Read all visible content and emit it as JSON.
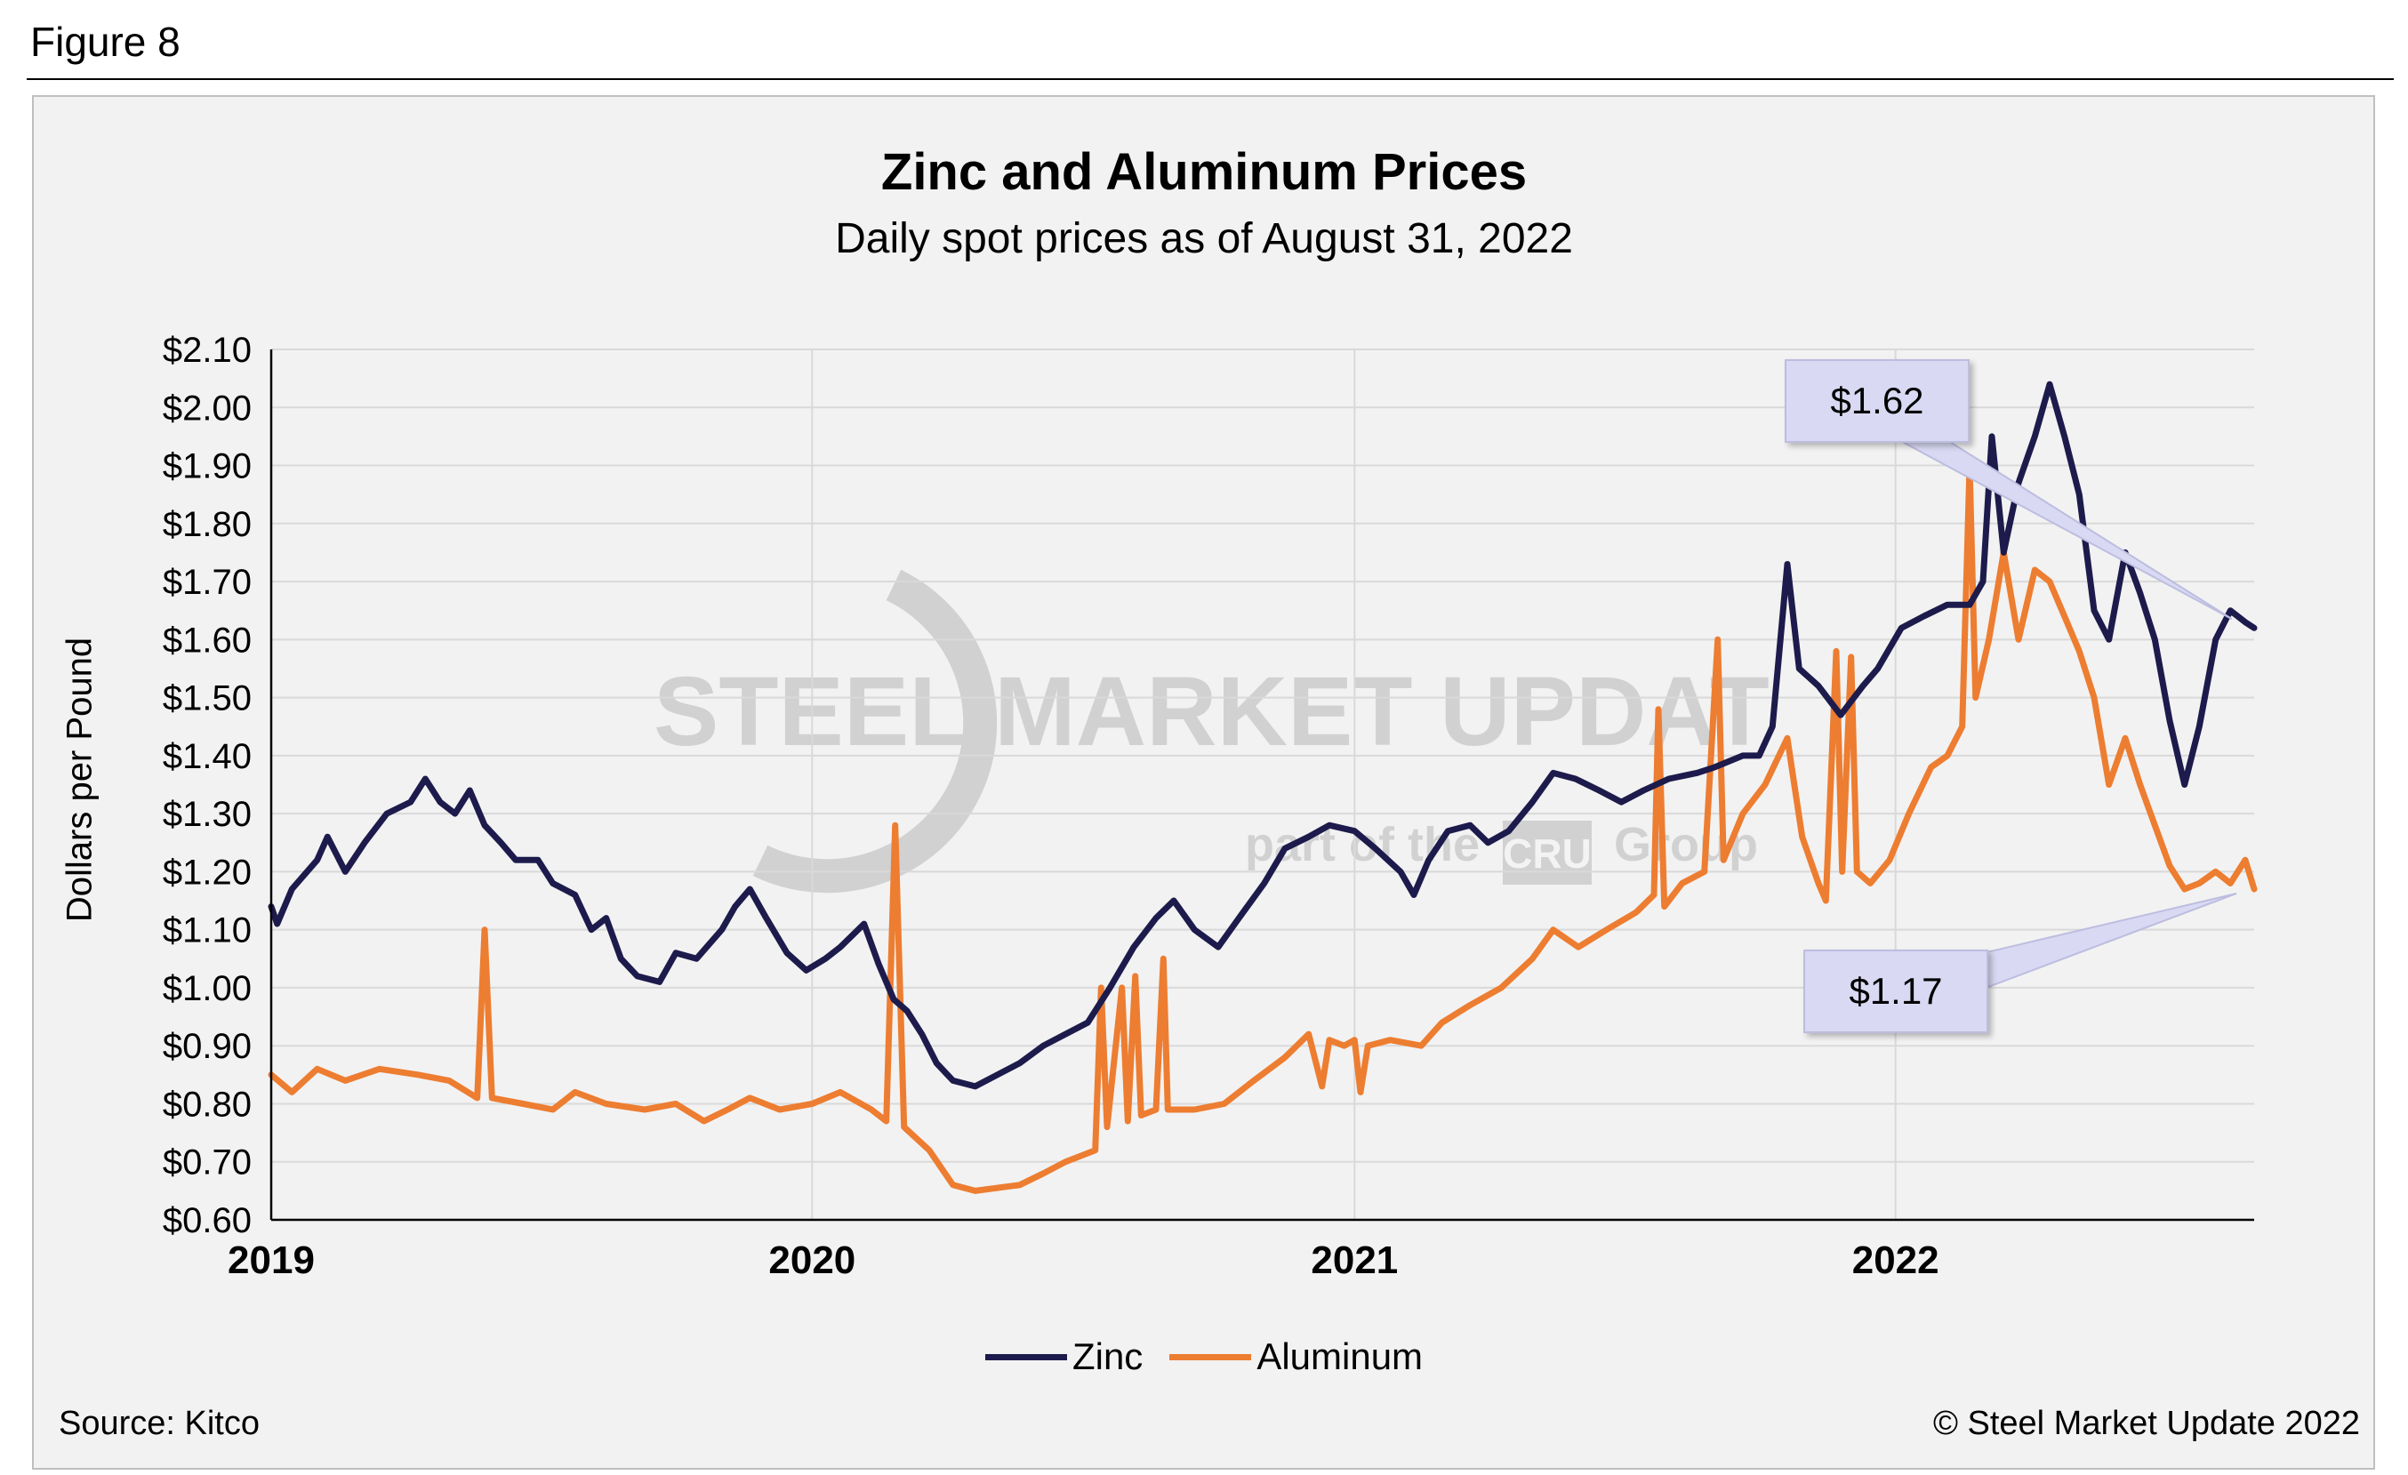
{
  "figure_label": "Figure 8",
  "source": "Source: Kitco",
  "copyright": "© Steel Market Update 2022",
  "colors": {
    "zinc": "#1d1b4c",
    "aluminum": "#ed7d31",
    "callout_fill": "#d9d9f3",
    "panel": "#f2f2f2"
  },
  "callouts": [
    {
      "label": "$1.62",
      "series": "Zinc"
    },
    {
      "label": "$1.17",
      "series": "Aluminum"
    }
  ],
  "watermark": {
    "line1": "STEEL MARKET UPDATE",
    "line2": "part of the",
    "brand": "CRU",
    "line3": "Group"
  },
  "chart_data": {
    "type": "line",
    "title": "Zinc and Aluminum Prices",
    "subtitle": "Daily spot prices as of August 31, 2022",
    "xlabel": "",
    "ylabel": "Dollars per Pound",
    "xlim": [
      "2019-01-01",
      "2022-08-31"
    ],
    "ylim": [
      0.6,
      2.1
    ],
    "x_ticks": [
      "2019",
      "2020",
      "2021",
      "2022"
    ],
    "y_ticks": [
      "$0.60",
      "$0.70",
      "$0.80",
      "$0.90",
      "$1.00",
      "$1.10",
      "$1.20",
      "$1.30",
      "$1.40",
      "$1.50",
      "$1.60",
      "$1.70",
      "$1.80",
      "$1.90",
      "$2.00",
      "$2.10"
    ],
    "y_tick_values": [
      0.6,
      0.7,
      0.8,
      0.9,
      1.0,
      1.1,
      1.2,
      1.3,
      1.4,
      1.5,
      1.6,
      1.7,
      1.8,
      1.9,
      2.0,
      2.1
    ],
    "grid": true,
    "legend": "bottom",
    "series": [
      {
        "name": "Zinc",
        "points": [
          [
            "2019-01-01",
            1.14
          ],
          [
            "2019-01-05",
            1.11
          ],
          [
            "2019-01-15",
            1.17
          ],
          [
            "2019-02-01",
            1.22
          ],
          [
            "2019-02-08",
            1.26
          ],
          [
            "2019-02-20",
            1.2
          ],
          [
            "2019-03-05",
            1.25
          ],
          [
            "2019-03-20",
            1.3
          ],
          [
            "2019-04-05",
            1.32
          ],
          [
            "2019-04-15",
            1.36
          ],
          [
            "2019-04-25",
            1.32
          ],
          [
            "2019-05-05",
            1.3
          ],
          [
            "2019-05-15",
            1.34
          ],
          [
            "2019-05-25",
            1.28
          ],
          [
            "2019-06-05",
            1.25
          ],
          [
            "2019-06-15",
            1.22
          ],
          [
            "2019-06-30",
            1.22
          ],
          [
            "2019-07-10",
            1.18
          ],
          [
            "2019-07-25",
            1.16
          ],
          [
            "2019-08-05",
            1.1
          ],
          [
            "2019-08-15",
            1.12
          ],
          [
            "2019-08-25",
            1.05
          ],
          [
            "2019-09-05",
            1.02
          ],
          [
            "2019-09-20",
            1.01
          ],
          [
            "2019-10-01",
            1.06
          ],
          [
            "2019-10-15",
            1.05
          ],
          [
            "2019-11-01",
            1.1
          ],
          [
            "2019-11-10",
            1.14
          ],
          [
            "2019-11-20",
            1.17
          ],
          [
            "2019-12-01",
            1.12
          ],
          [
            "2019-12-15",
            1.06
          ],
          [
            "2019-12-28",
            1.03
          ],
          [
            "2020-01-10",
            1.05
          ],
          [
            "2020-01-20",
            1.07
          ],
          [
            "2020-02-05",
            1.11
          ],
          [
            "2020-02-15",
            1.04
          ],
          [
            "2020-02-25",
            0.98
          ],
          [
            "2020-03-05",
            0.96
          ],
          [
            "2020-03-15",
            0.92
          ],
          [
            "2020-03-25",
            0.87
          ],
          [
            "2020-04-05",
            0.84
          ],
          [
            "2020-04-20",
            0.83
          ],
          [
            "2020-05-05",
            0.85
          ],
          [
            "2020-05-20",
            0.87
          ],
          [
            "2020-06-05",
            0.9
          ],
          [
            "2020-06-20",
            0.92
          ],
          [
            "2020-07-05",
            0.94
          ],
          [
            "2020-07-20",
            1.0
          ],
          [
            "2020-08-05",
            1.07
          ],
          [
            "2020-08-20",
            1.12
          ],
          [
            "2020-09-01",
            1.15
          ],
          [
            "2020-09-15",
            1.1
          ],
          [
            "2020-10-01",
            1.07
          ],
          [
            "2020-10-15",
            1.12
          ],
          [
            "2020-11-01",
            1.18
          ],
          [
            "2020-11-15",
            1.24
          ],
          [
            "2020-12-01",
            1.26
          ],
          [
            "2020-12-15",
            1.28
          ],
          [
            "2021-01-01",
            1.27
          ],
          [
            "2021-01-15",
            1.24
          ],
          [
            "2021-02-01",
            1.2
          ],
          [
            "2021-02-10",
            1.16
          ],
          [
            "2021-02-20",
            1.22
          ],
          [
            "2021-03-05",
            1.27
          ],
          [
            "2021-03-20",
            1.28
          ],
          [
            "2021-04-01",
            1.25
          ],
          [
            "2021-04-15",
            1.27
          ],
          [
            "2021-05-01",
            1.32
          ],
          [
            "2021-05-15",
            1.37
          ],
          [
            "2021-05-30",
            1.36
          ],
          [
            "2021-06-15",
            1.34
          ],
          [
            "2021-06-30",
            1.32
          ],
          [
            "2021-07-15",
            1.34
          ],
          [
            "2021-08-01",
            1.36
          ],
          [
            "2021-08-20",
            1.37
          ],
          [
            "2021-09-01",
            1.38
          ],
          [
            "2021-09-20",
            1.4
          ],
          [
            "2021-10-01",
            1.4
          ],
          [
            "2021-10-10",
            1.45
          ],
          [
            "2021-10-20",
            1.73
          ],
          [
            "2021-10-28",
            1.55
          ],
          [
            "2021-11-10",
            1.52
          ],
          [
            "2021-11-25",
            1.47
          ],
          [
            "2021-12-10",
            1.52
          ],
          [
            "2021-12-20",
            1.55
          ],
          [
            "2022-01-05",
            1.62
          ],
          [
            "2022-01-20",
            1.64
          ],
          [
            "2022-02-05",
            1.66
          ],
          [
            "2022-02-20",
            1.66
          ],
          [
            "2022-03-01",
            1.7
          ],
          [
            "2022-03-07",
            1.95
          ],
          [
            "2022-03-15",
            1.75
          ],
          [
            "2022-03-25",
            1.87
          ],
          [
            "2022-04-05",
            1.95
          ],
          [
            "2022-04-15",
            2.04
          ],
          [
            "2022-04-25",
            1.95
          ],
          [
            "2022-05-05",
            1.85
          ],
          [
            "2022-05-15",
            1.65
          ],
          [
            "2022-05-25",
            1.6
          ],
          [
            "2022-06-05",
            1.75
          ],
          [
            "2022-06-15",
            1.68
          ],
          [
            "2022-06-25",
            1.6
          ],
          [
            "2022-07-05",
            1.46
          ],
          [
            "2022-07-15",
            1.35
          ],
          [
            "2022-07-25",
            1.45
          ],
          [
            "2022-08-05",
            1.6
          ],
          [
            "2022-08-15",
            1.65
          ],
          [
            "2022-08-25",
            1.63
          ],
          [
            "2022-08-31",
            1.62
          ]
        ]
      },
      {
        "name": "Aluminum",
        "points": [
          [
            "2019-01-01",
            0.85
          ],
          [
            "2019-01-15",
            0.82
          ],
          [
            "2019-02-01",
            0.86
          ],
          [
            "2019-02-20",
            0.84
          ],
          [
            "2019-03-15",
            0.86
          ],
          [
            "2019-04-10",
            0.85
          ],
          [
            "2019-05-01",
            0.84
          ],
          [
            "2019-05-20",
            0.81
          ],
          [
            "2019-05-25",
            1.1
          ],
          [
            "2019-05-30",
            0.81
          ],
          [
            "2019-06-20",
            0.8
          ],
          [
            "2019-07-10",
            0.79
          ],
          [
            "2019-07-25",
            0.82
          ],
          [
            "2019-08-15",
            0.8
          ],
          [
            "2019-09-10",
            0.79
          ],
          [
            "2019-10-01",
            0.8
          ],
          [
            "2019-10-20",
            0.77
          ],
          [
            "2019-11-05",
            0.79
          ],
          [
            "2019-11-20",
            0.81
          ],
          [
            "2019-12-10",
            0.79
          ],
          [
            "2020-01-01",
            0.8
          ],
          [
            "2020-01-20",
            0.82
          ],
          [
            "2020-02-10",
            0.79
          ],
          [
            "2020-02-20",
            0.77
          ],
          [
            "2020-02-26",
            1.28
          ],
          [
            "2020-03-03",
            0.76
          ],
          [
            "2020-03-20",
            0.72
          ],
          [
            "2020-04-05",
            0.66
          ],
          [
            "2020-04-20",
            0.65
          ],
          [
            "2020-05-20",
            0.66
          ],
          [
            "2020-06-05",
            0.68
          ],
          [
            "2020-06-20",
            0.7
          ],
          [
            "2020-07-10",
            0.72
          ],
          [
            "2020-07-14",
            1.0
          ],
          [
            "2020-07-18",
            0.76
          ],
          [
            "2020-07-28",
            1.0
          ],
          [
            "2020-08-01",
            0.77
          ],
          [
            "2020-08-06",
            1.02
          ],
          [
            "2020-08-10",
            0.78
          ],
          [
            "2020-08-20",
            0.79
          ],
          [
            "2020-08-25",
            1.05
          ],
          [
            "2020-08-28",
            0.79
          ],
          [
            "2020-09-15",
            0.79
          ],
          [
            "2020-10-05",
            0.8
          ],
          [
            "2020-10-25",
            0.84
          ],
          [
            "2020-11-15",
            0.88
          ],
          [
            "2020-12-01",
            0.92
          ],
          [
            "2020-12-10",
            0.83
          ],
          [
            "2020-12-15",
            0.91
          ],
          [
            "2020-12-25",
            0.9
          ],
          [
            "2021-01-01",
            0.91
          ],
          [
            "2021-01-05",
            0.82
          ],
          [
            "2021-01-10",
            0.9
          ],
          [
            "2021-01-25",
            0.91
          ],
          [
            "2021-02-15",
            0.9
          ],
          [
            "2021-03-01",
            0.94
          ],
          [
            "2021-03-20",
            0.97
          ],
          [
            "2021-04-10",
            1.0
          ],
          [
            "2021-05-01",
            1.05
          ],
          [
            "2021-05-15",
            1.1
          ],
          [
            "2021-06-01",
            1.07
          ],
          [
            "2021-06-20",
            1.1
          ],
          [
            "2021-07-10",
            1.13
          ],
          [
            "2021-07-22",
            1.16
          ],
          [
            "2021-07-25",
            1.48
          ],
          [
            "2021-07-29",
            1.14
          ],
          [
            "2021-08-10",
            1.18
          ],
          [
            "2021-08-25",
            1.2
          ],
          [
            "2021-09-03",
            1.6
          ],
          [
            "2021-09-07",
            1.22
          ],
          [
            "2021-09-20",
            1.3
          ],
          [
            "2021-10-05",
            1.35
          ],
          [
            "2021-10-20",
            1.43
          ],
          [
            "2021-10-30",
            1.26
          ],
          [
            "2021-11-10",
            1.18
          ],
          [
            "2021-11-15",
            1.15
          ],
          [
            "2021-11-22",
            1.58
          ],
          [
            "2021-11-26",
            1.2
          ],
          [
            "2021-12-02",
            1.57
          ],
          [
            "2021-12-06",
            1.2
          ],
          [
            "2021-12-15",
            1.18
          ],
          [
            "2021-12-28",
            1.22
          ],
          [
            "2022-01-10",
            1.3
          ],
          [
            "2022-01-25",
            1.38
          ],
          [
            "2022-02-05",
            1.4
          ],
          [
            "2022-02-15",
            1.45
          ],
          [
            "2022-02-20",
            1.9
          ],
          [
            "2022-02-24",
            1.5
          ],
          [
            "2022-03-05",
            1.6
          ],
          [
            "2022-03-15",
            1.75
          ],
          [
            "2022-03-25",
            1.6
          ],
          [
            "2022-04-05",
            1.72
          ],
          [
            "2022-04-15",
            1.7
          ],
          [
            "2022-04-25",
            1.64
          ],
          [
            "2022-05-05",
            1.58
          ],
          [
            "2022-05-15",
            1.5
          ],
          [
            "2022-05-25",
            1.35
          ],
          [
            "2022-06-05",
            1.43
          ],
          [
            "2022-06-15",
            1.35
          ],
          [
            "2022-06-25",
            1.28
          ],
          [
            "2022-07-05",
            1.21
          ],
          [
            "2022-07-15",
            1.17
          ],
          [
            "2022-07-25",
            1.18
          ],
          [
            "2022-08-05",
            1.2
          ],
          [
            "2022-08-15",
            1.18
          ],
          [
            "2022-08-25",
            1.22
          ],
          [
            "2022-08-31",
            1.17
          ]
        ]
      }
    ]
  }
}
